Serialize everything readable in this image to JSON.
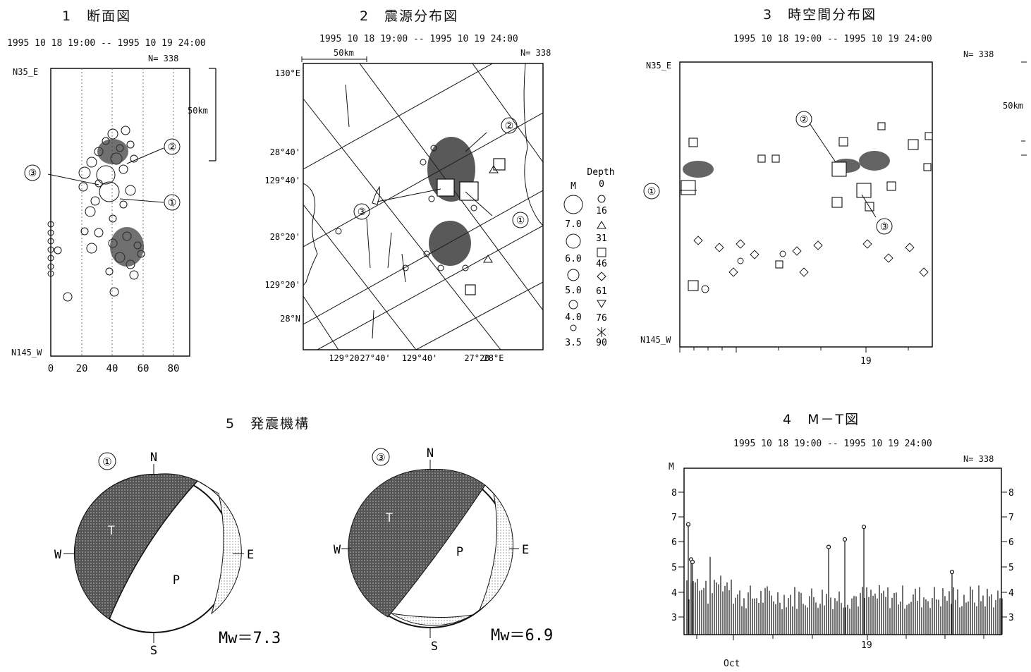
{
  "panel1": {
    "title": "1　断面図",
    "period": "1995 10 18 19:00 -- 1995 10 19 24:00",
    "count": "N= 338",
    "top_label": "N35_E",
    "bottom_label": "N145_W",
    "scale": "50km",
    "xticks": [
      "0",
      "20",
      "40",
      "60",
      "80"
    ],
    "markers": [
      "①",
      "②",
      "③"
    ]
  },
  "panel2": {
    "title": "2　震源分布図",
    "period": "1995 10 18 19:00 -- 1995 10 19 24:00",
    "count": "N= 338",
    "scale": "50km",
    "left_labels": [
      "130°E",
      "28°40'",
      "129°40'",
      "28°20'",
      "129°20'",
      "28°N"
    ],
    "bottom_labels": [
      "129°20",
      "27°40'",
      "129°40'",
      "27°20'",
      "28°E"
    ],
    "markers": [
      "①",
      "②",
      "③"
    ],
    "depth_legend": {
      "title": "Depth",
      "depths": [
        "0",
        "16",
        "31",
        "46",
        "61",
        "76",
        "90"
      ]
    },
    "mag_legend": {
      "title": "M",
      "values": [
        "7.0",
        "6.0",
        "5.0",
        "4.0",
        "3.5"
      ]
    }
  },
  "panel3": {
    "title": "3　時空間分布図",
    "period": "1995 10 18 19:00 -- 1995 10 19 24:00",
    "count": "N= 338",
    "top_label": "N35_E",
    "bottom_label": "N145_W",
    "scale": "50km",
    "xlabel": "19",
    "markers": [
      "①",
      "②",
      "③"
    ]
  },
  "panel4": {
    "title": "4　M－T図",
    "period": "1995 10 18 19:00 -- 1995 10 19 24:00",
    "count": "N= 338",
    "ylabel": "M",
    "yticks": [
      "8",
      "7",
      "6",
      "5",
      "4",
      "3"
    ],
    "xlabel": "19",
    "month": "Oct"
  },
  "panel5": {
    "title": "5　発震機構",
    "mech1": {
      "marker": "①",
      "N": "N",
      "S": "S",
      "E": "E",
      "W": "W",
      "T": "T",
      "P": "P",
      "mw": "Mw＝7.3"
    },
    "mech2": {
      "marker": "③",
      "N": "N",
      "S": "S",
      "E": "E",
      "W": "W",
      "T": "T",
      "P": "P",
      "mw": "Mw＝6.9"
    }
  }
}
